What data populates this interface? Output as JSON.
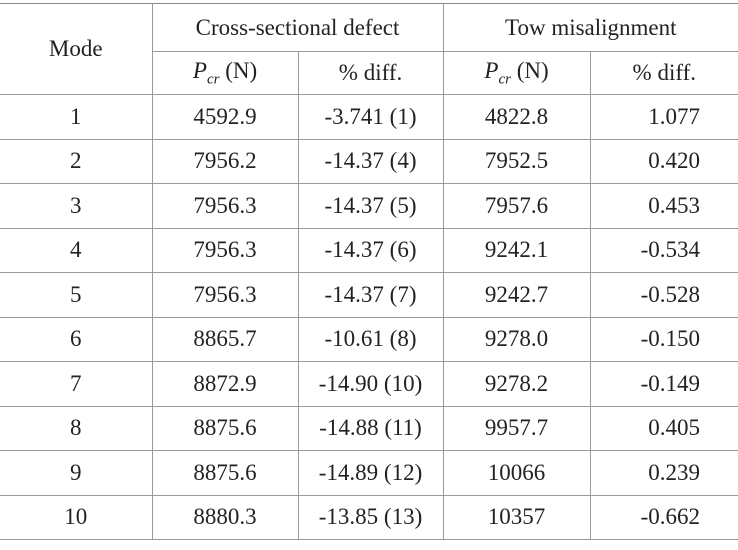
{
  "table": {
    "header": {
      "mode": "Mode",
      "groups": [
        "Cross-sectional defect",
        "Tow misalignment"
      ],
      "columns": [
        {
          "symbol": "P",
          "subscript": "cr",
          "unit": "(N)"
        },
        {
          "text": "% diff."
        },
        {
          "symbol": "P",
          "subscript": "cr",
          "unit": "(N)"
        },
        {
          "text": "% diff."
        }
      ]
    },
    "rows": [
      [
        "1",
        "4592.9",
        "-3.741 (1)",
        "4822.8",
        "1.077"
      ],
      [
        "2",
        "7956.2",
        "-14.37 (4)",
        "7952.5",
        "0.420"
      ],
      [
        "3",
        "7956.3",
        "-14.37 (5)",
        "7957.6",
        "0.453"
      ],
      [
        "4",
        "7956.3",
        "-14.37 (6)",
        "9242.1",
        "-0.534"
      ],
      [
        "5",
        "7956.3",
        "-14.37 (7)",
        "9242.7",
        "-0.528"
      ],
      [
        "6",
        "8865.7",
        "-10.61 (8)",
        "9278.0",
        "-0.150"
      ],
      [
        "7",
        "8872.9",
        "-14.90 (10)",
        "9278.2",
        "-0.149"
      ],
      [
        "8",
        "8875.6",
        "-14.88 (11)",
        "9957.7",
        "0.405"
      ],
      [
        "9",
        "8875.6",
        "-14.89 (12)",
        "10066",
        "0.239"
      ],
      [
        "10",
        "8880.3",
        "-13.85 (13)",
        "10357",
        "-0.662"
      ]
    ]
  }
}
